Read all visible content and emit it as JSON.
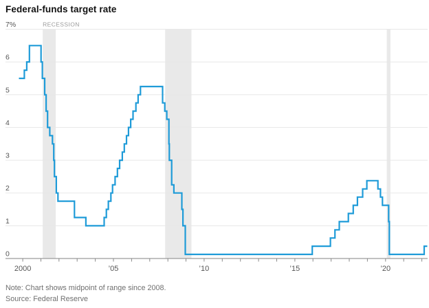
{
  "chart_data": {
    "type": "line",
    "subtype": "step-after",
    "title": "Federal-funds target rate",
    "note": "Note: Chart shows midpoint of range since 2008.",
    "source": "Source: Federal Reserve",
    "recession_label": "RECESSION",
    "xlabel": "",
    "ylabel": "",
    "grid": true,
    "legend": "none",
    "ylim": [
      0,
      7
    ],
    "xlim": [
      1999.05,
      2022.32
    ],
    "x_end": 2022.3,
    "x_tick_interval_years": 1,
    "y_ticks": [
      {
        "v": 7,
        "label": "7%"
      },
      {
        "v": 6,
        "label": "6"
      },
      {
        "v": 5,
        "label": "5"
      },
      {
        "v": 4,
        "label": "4"
      },
      {
        "v": 3,
        "label": "3"
      },
      {
        "v": 2,
        "label": "2"
      },
      {
        "v": 1,
        "label": "1"
      },
      {
        "v": 0,
        "label": "0"
      }
    ],
    "x_ticks_labeled": [
      {
        "v": 2000,
        "label": "2000"
      },
      {
        "v": 2005,
        "label": "’05"
      },
      {
        "v": 2010,
        "label": "’10"
      },
      {
        "v": 2015,
        "label": "’15"
      },
      {
        "v": 2020,
        "label": "’20"
      }
    ],
    "recession_bands": [
      [
        2001.1,
        2001.82
      ],
      [
        2007.85,
        2009.3
      ],
      [
        2020.07,
        2020.27
      ]
    ],
    "series": [
      {
        "name": "Federal-funds target rate (midpoint of range since 2008)",
        "points": [
          [
            1999.79,
            5.5
          ],
          [
            2000.09,
            5.75
          ],
          [
            2000.22,
            6.0
          ],
          [
            2000.37,
            6.5
          ],
          [
            2001.01,
            6.0
          ],
          [
            2001.08,
            5.5
          ],
          [
            2001.21,
            5.0
          ],
          [
            2001.29,
            4.5
          ],
          [
            2001.37,
            4.0
          ],
          [
            2001.49,
            3.75
          ],
          [
            2001.64,
            3.5
          ],
          [
            2001.71,
            3.0
          ],
          [
            2001.75,
            2.5
          ],
          [
            2001.85,
            2.0
          ],
          [
            2001.94,
            1.75
          ],
          [
            2002.85,
            1.25
          ],
          [
            2003.48,
            1.0
          ],
          [
            2004.49,
            1.25
          ],
          [
            2004.61,
            1.5
          ],
          [
            2004.72,
            1.75
          ],
          [
            2004.86,
            2.0
          ],
          [
            2004.95,
            2.25
          ],
          [
            2005.09,
            2.5
          ],
          [
            2005.22,
            2.75
          ],
          [
            2005.34,
            3.0
          ],
          [
            2005.49,
            3.25
          ],
          [
            2005.6,
            3.5
          ],
          [
            2005.72,
            3.75
          ],
          [
            2005.83,
            4.0
          ],
          [
            2005.95,
            4.25
          ],
          [
            2006.08,
            4.5
          ],
          [
            2006.24,
            4.75
          ],
          [
            2006.36,
            5.0
          ],
          [
            2006.49,
            5.25
          ],
          [
            2007.71,
            4.75
          ],
          [
            2007.83,
            4.5
          ],
          [
            2007.94,
            4.25
          ],
          [
            2008.06,
            3.5
          ],
          [
            2008.08,
            3.0
          ],
          [
            2008.21,
            2.25
          ],
          [
            2008.33,
            2.0
          ],
          [
            2008.77,
            1.5
          ],
          [
            2008.83,
            1.0
          ],
          [
            2008.96,
            0.125
          ],
          [
            2015.96,
            0.375
          ],
          [
            2016.96,
            0.625
          ],
          [
            2017.21,
            0.875
          ],
          [
            2017.45,
            1.125
          ],
          [
            2017.95,
            1.375
          ],
          [
            2018.22,
            1.625
          ],
          [
            2018.45,
            1.875
          ],
          [
            2018.74,
            2.125
          ],
          [
            2018.97,
            2.375
          ],
          [
            2019.58,
            2.125
          ],
          [
            2019.72,
            1.875
          ],
          [
            2019.83,
            1.625
          ],
          [
            2020.17,
            1.125
          ],
          [
            2020.21,
            0.125
          ],
          [
            2022.13,
            0.375
          ]
        ]
      }
    ],
    "colors": {
      "line": "#1E9BD8",
      "recession_band": "#e9e9e9",
      "grid": "#e7e7e7",
      "axis": "#9c9c9c",
      "tick": "#8a8a8a",
      "tick_label": "#555555",
      "y_label": "#555555",
      "recession_label": "#9b9b9b",
      "title": "#111111",
      "note_text": "#6f6f6f"
    }
  }
}
